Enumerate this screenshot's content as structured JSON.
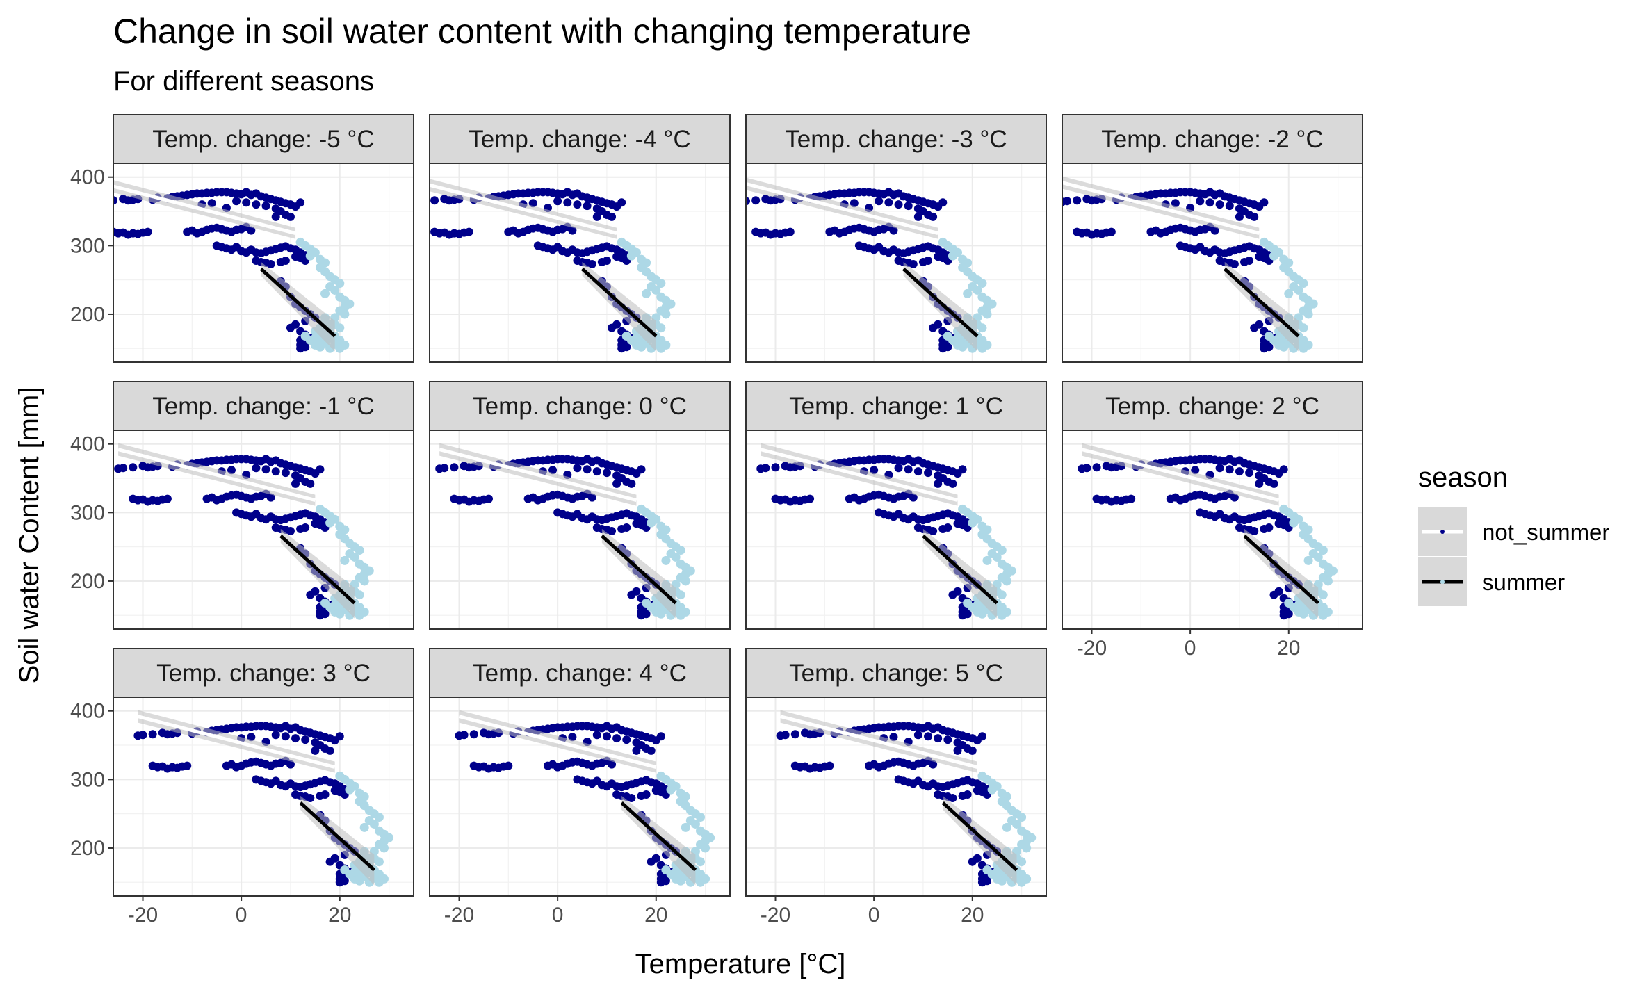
{
  "chart_data": {
    "type": "scatter",
    "title": "Change in soil water content with changing temperature",
    "subtitle": "For different seasons",
    "xlabel": "Temperature [°C]",
    "ylabel": "Soil water Content [mm]",
    "xlim": [
      -26,
      35
    ],
    "ylim": [
      130,
      420
    ],
    "x_ticks": [
      -20,
      0,
      20
    ],
    "y_ticks": [
      200,
      300,
      400
    ],
    "grid": true,
    "legend": {
      "title": "season",
      "position": "right",
      "entries": [
        {
          "label": "not_summer",
          "point_color": "#00008B",
          "line_color": "#FFFFFF"
        },
        {
          "label": "summer",
          "point_color": "#ADD8E6",
          "line_color": "#000000"
        }
      ]
    },
    "colors": {
      "not_summer_points": "#00008B",
      "summer_points": "#ADD8E6",
      "not_summer_line": "#FFFFFF",
      "summer_line": "#000000",
      "ribbon": "#BEBEBE",
      "strip_bg": "#D9D9D9"
    },
    "facet_label_format": "Temp. change: {v} °C",
    "facets": [
      {
        "label": "Temp. change: -5 °C",
        "shift": -5
      },
      {
        "label": "Temp. change: -4 °C",
        "shift": -4
      },
      {
        "label": "Temp. change: -3 °C",
        "shift": -3
      },
      {
        "label": "Temp. change: -2 °C",
        "shift": -2
      },
      {
        "label": "Temp. change: -1 °C",
        "shift": -1
      },
      {
        "label": "Temp. change: 0 °C",
        "shift": 0
      },
      {
        "label": "Temp. change: 1 °C",
        "shift": 1
      },
      {
        "label": "Temp. change: 2 °C",
        "shift": 2
      },
      {
        "label": "Temp. change: 3 °C",
        "shift": 3
      },
      {
        "label": "Temp. change: 4 °C",
        "shift": 4
      },
      {
        "label": "Temp. change: 5 °C",
        "shift": 5
      }
    ],
    "base_series": [
      {
        "name": "not_summer",
        "points": [
          [
            -24,
            364
          ],
          [
            -23,
            365
          ],
          [
            -21,
            366
          ],
          [
            -19,
            368
          ],
          [
            -18,
            366
          ],
          [
            -17,
            367
          ],
          [
            -16,
            368
          ],
          [
            -13,
            367
          ],
          [
            -12,
            370
          ],
          [
            -10,
            369
          ],
          [
            -9,
            371
          ],
          [
            -8,
            372
          ],
          [
            -7,
            373
          ],
          [
            -6,
            374
          ],
          [
            -5,
            375
          ],
          [
            -4,
            376
          ],
          [
            -3,
            376
          ],
          [
            -2,
            377
          ],
          [
            -1,
            377
          ],
          [
            0,
            378
          ],
          [
            1,
            378
          ],
          [
            2,
            378
          ],
          [
            3,
            377
          ],
          [
            4,
            376
          ],
          [
            5,
            375
          ],
          [
            6,
            378
          ],
          [
            7,
            374
          ],
          [
            8,
            376
          ],
          [
            9,
            372
          ],
          [
            10,
            370
          ],
          [
            11,
            368
          ],
          [
            12,
            366
          ],
          [
            13,
            364
          ],
          [
            14,
            362
          ],
          [
            15,
            360
          ],
          [
            16,
            357
          ],
          [
            17,
            363
          ],
          [
            4,
            365
          ],
          [
            6,
            363
          ],
          [
            8,
            360
          ],
          [
            10,
            358
          ],
          [
            12,
            354
          ],
          [
            13,
            350
          ],
          [
            14,
            345
          ],
          [
            15,
            342
          ],
          [
            12,
            342
          ],
          [
            -3,
            360
          ],
          [
            -1,
            362
          ],
          [
            2,
            355
          ],
          [
            -21,
            320
          ],
          [
            -20,
            318
          ],
          [
            -19,
            319
          ],
          [
            -18,
            316
          ],
          [
            -17,
            318
          ],
          [
            -16,
            317
          ],
          [
            -15,
            319
          ],
          [
            -14,
            320
          ],
          [
            -6,
            320
          ],
          [
            -5,
            322
          ],
          [
            -4,
            318
          ],
          [
            -3,
            320
          ],
          [
            -2,
            323
          ],
          [
            -1,
            325
          ],
          [
            0,
            326
          ],
          [
            1,
            324
          ],
          [
            2,
            322
          ],
          [
            3,
            320
          ],
          [
            4,
            323
          ],
          [
            5,
            324
          ],
          [
            6,
            327
          ],
          [
            7,
            322
          ],
          [
            0,
            300
          ],
          [
            1,
            298
          ],
          [
            2,
            296
          ],
          [
            3,
            294
          ],
          [
            4,
            298
          ],
          [
            5,
            292
          ],
          [
            6,
            290
          ],
          [
            7,
            294
          ],
          [
            8,
            290
          ],
          [
            9,
            289
          ],
          [
            10,
            291
          ],
          [
            11,
            293
          ],
          [
            12,
            295
          ],
          [
            13,
            297
          ],
          [
            14,
            299
          ],
          [
            15,
            296
          ],
          [
            16,
            294
          ],
          [
            17,
            290
          ],
          [
            18,
            286
          ],
          [
            16,
            284
          ],
          [
            17,
            282
          ],
          [
            18,
            278
          ],
          [
            8,
            278
          ],
          [
            9,
            276
          ],
          [
            10,
            275
          ],
          [
            11,
            273
          ],
          [
            13,
            276
          ],
          [
            14,
            278
          ],
          [
            13,
            248
          ],
          [
            14,
            240
          ],
          [
            15,
            225
          ],
          [
            16,
            215
          ],
          [
            17,
            210
          ],
          [
            18,
            205
          ],
          [
            19,
            200
          ],
          [
            20,
            195
          ],
          [
            18,
            190
          ],
          [
            16,
            185
          ],
          [
            15,
            180
          ],
          [
            17,
            175
          ],
          [
            18,
            170
          ],
          [
            19,
            165
          ],
          [
            17,
            162
          ],
          [
            18,
            160
          ],
          [
            17,
            155
          ],
          [
            18,
            152
          ],
          [
            17,
            150
          ]
        ]
      },
      {
        "name": "summer",
        "points": [
          [
            17,
            305
          ],
          [
            18,
            300
          ],
          [
            19,
            295
          ],
          [
            20,
            290
          ],
          [
            19,
            285
          ],
          [
            21,
            280
          ],
          [
            22,
            275
          ],
          [
            21,
            268
          ],
          [
            22,
            262
          ],
          [
            23,
            255
          ],
          [
            24,
            250
          ],
          [
            25,
            245
          ],
          [
            23,
            240
          ],
          [
            24,
            235
          ],
          [
            22,
            230
          ],
          [
            25,
            225
          ],
          [
            26,
            220
          ],
          [
            27,
            215
          ],
          [
            26,
            210
          ],
          [
            25,
            205
          ],
          [
            26,
            200
          ],
          [
            24,
            195
          ],
          [
            22,
            190
          ],
          [
            23,
            185
          ],
          [
            21,
            180
          ],
          [
            20,
            175
          ],
          [
            22,
            172
          ],
          [
            24,
            168
          ],
          [
            23,
            165
          ],
          [
            25,
            162
          ],
          [
            21,
            160
          ],
          [
            22,
            158
          ],
          [
            24,
            156
          ],
          [
            26,
            155
          ],
          [
            20,
            155
          ],
          [
            21,
            152
          ],
          [
            23,
            150
          ],
          [
            25,
            150
          ],
          [
            20,
            158
          ],
          [
            19,
            162
          ],
          [
            22,
            165
          ],
          [
            18,
            168
          ],
          [
            20,
            165
          ],
          [
            21,
            170
          ],
          [
            23,
            175
          ],
          [
            25,
            180
          ],
          [
            24,
            185
          ],
          [
            22,
            195
          ]
        ]
      }
    ],
    "base_trends": [
      {
        "name": "not_summer",
        "x": [
          -24,
          16
        ],
        "y": [
          392,
          318
        ]
      },
      {
        "name": "summer",
        "x": [
          9,
          24
        ],
        "y": [
          266,
          168
        ]
      }
    ]
  }
}
